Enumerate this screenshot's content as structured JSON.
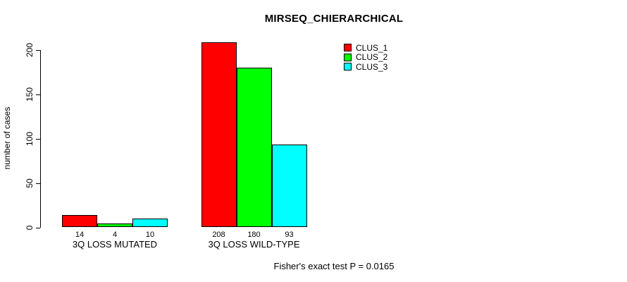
{
  "chart_data": {
    "type": "bar",
    "title": "MIRSEQ_CHIERARCHICAL",
    "xlabel": "",
    "ylabel": "number of cases",
    "ylim": [
      0,
      208
    ],
    "yticks": [
      0,
      50,
      100,
      150,
      200
    ],
    "grid": false,
    "legend_position": "inside-top-right",
    "categories": [
      "3Q LOSS MUTATED",
      "3Q LOSS WILD-TYPE"
    ],
    "series": [
      {
        "name": "CLUS_1",
        "color": "#ff0000",
        "values": [
          14,
          208
        ]
      },
      {
        "name": "CLUS_2",
        "color": "#00ff00",
        "values": [
          4,
          180
        ]
      },
      {
        "name": "CLUS_3",
        "color": "#00ffff",
        "values": [
          10,
          93
        ]
      }
    ],
    "bar_value_labels": [
      [
        "14",
        "4",
        "10"
      ],
      [
        "208",
        "180",
        "93"
      ]
    ],
    "annotation": "Fisher's exact test P = 0.0165"
  },
  "colors": {
    "background": "#ffffff",
    "axis": "#000000",
    "text": "#000000"
  }
}
